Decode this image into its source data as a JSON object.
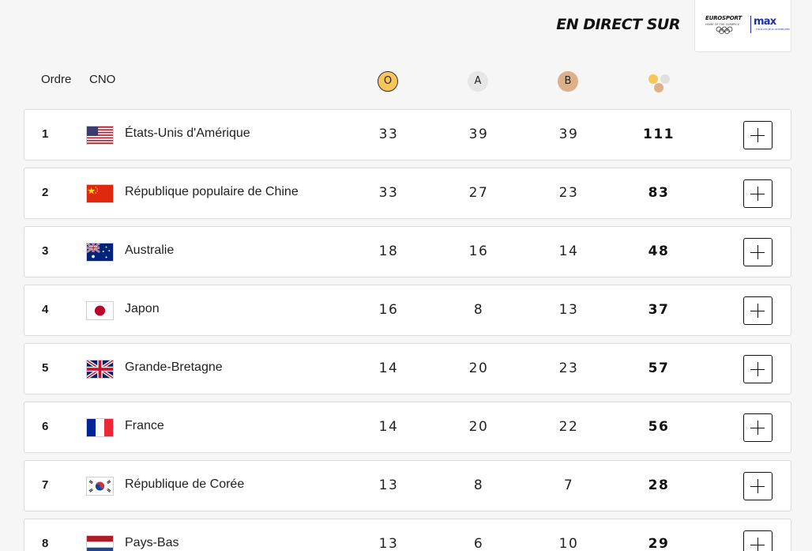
{
  "header": {
    "live_label": "EN DIRECT SUR",
    "sponsor": {
      "eurosport": "EUROSPORT",
      "eurosport_sub": "HOME OF THE OLYMPICS",
      "max": "max",
      "max_sub": "TOUS LES JEUX OLYMPIQUES"
    }
  },
  "table": {
    "col_rank": "Ordre",
    "col_noc": "CNO",
    "col_gold": "O",
    "col_silver": "A",
    "col_bronze": "B",
    "rows": [
      {
        "rank": "1",
        "country": "États-Unis d'Amérique",
        "gold": "33",
        "silver": "39",
        "bronze": "39",
        "total": "111",
        "flag": "usa-flag-icon"
      },
      {
        "rank": "2",
        "country": "République populaire de Chine",
        "gold": "33",
        "silver": "27",
        "bronze": "23",
        "total": "83",
        "flag": "china-flag-icon"
      },
      {
        "rank": "3",
        "country": "Australie",
        "gold": "18",
        "silver": "16",
        "bronze": "14",
        "total": "48",
        "flag": "australia-flag-icon"
      },
      {
        "rank": "4",
        "country": "Japon",
        "gold": "16",
        "silver": "8",
        "bronze": "13",
        "total": "37",
        "flag": "japan-flag-icon"
      },
      {
        "rank": "5",
        "country": "Grande-Bretagne",
        "gold": "14",
        "silver": "20",
        "bronze": "23",
        "total": "57",
        "flag": "uk-flag-icon"
      },
      {
        "rank": "6",
        "country": "France",
        "gold": "14",
        "silver": "20",
        "bronze": "22",
        "total": "56",
        "flag": "france-flag-icon"
      },
      {
        "rank": "7",
        "country": "République de Corée",
        "gold": "13",
        "silver": "8",
        "bronze": "7",
        "total": "28",
        "flag": "korea-flag-icon"
      },
      {
        "rank": "8",
        "country": "Pays-Bas",
        "gold": "13",
        "silver": "6",
        "bronze": "10",
        "total": "29",
        "flag": "netherlands-flag-icon"
      }
    ]
  },
  "colors": {
    "gold": "#f7c65a",
    "silver": "#e6e6e6",
    "bronze": "#dcb08a",
    "max_blue": "#1f2fa0"
  }
}
